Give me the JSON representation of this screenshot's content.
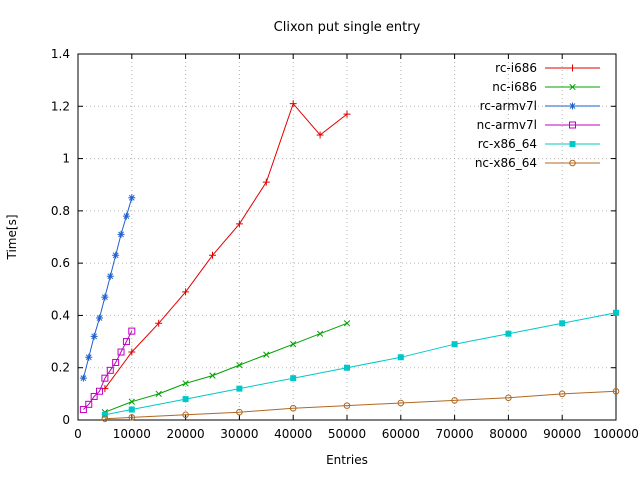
{
  "chart_data": {
    "type": "line",
    "title": "Clixon put single entry",
    "xlabel": "Entries",
    "ylabel": "Time[s]",
    "xlim": [
      0,
      100000
    ],
    "ylim": [
      0,
      1.4
    ],
    "xticks": [
      0,
      10000,
      20000,
      30000,
      40000,
      50000,
      60000,
      70000,
      80000,
      90000,
      100000
    ],
    "yticks": [
      0,
      0.2,
      0.4,
      0.6,
      0.8,
      1,
      1.2,
      1.4
    ],
    "grid": true,
    "legend_position": "top-right-inside",
    "grid_color": "#b8b8b8",
    "axis_color": "#000000",
    "series": [
      {
        "name": "rc-i686",
        "color": "#e00000",
        "marker": "plus",
        "x": [
          5000,
          10000,
          15000,
          20000,
          25000,
          30000,
          35000,
          40000,
          45000,
          50000
        ],
        "y": [
          0.12,
          0.26,
          0.37,
          0.49,
          0.63,
          0.75,
          0.91,
          1.21,
          1.09,
          1.17
        ]
      },
      {
        "name": "nc-i686",
        "color": "#00a000",
        "marker": "x",
        "x": [
          5000,
          10000,
          15000,
          20000,
          25000,
          30000,
          35000,
          40000,
          45000,
          50000
        ],
        "y": [
          0.03,
          0.07,
          0.1,
          0.14,
          0.17,
          0.21,
          0.25,
          0.29,
          0.33,
          0.37
        ]
      },
      {
        "name": "rc-armv7l",
        "color": "#2060d0",
        "marker": "asterisk",
        "x": [
          1000,
          2000,
          3000,
          4000,
          5000,
          6000,
          7000,
          8000,
          9000,
          10000
        ],
        "y": [
          0.16,
          0.24,
          0.32,
          0.39,
          0.47,
          0.55,
          0.63,
          0.71,
          0.78,
          0.85
        ]
      },
      {
        "name": "nc-armv7l",
        "color": "#c000c0",
        "marker": "square-open",
        "x": [
          1000,
          2000,
          3000,
          4000,
          5000,
          6000,
          7000,
          8000,
          9000,
          10000
        ],
        "y": [
          0.04,
          0.06,
          0.09,
          0.11,
          0.16,
          0.19,
          0.22,
          0.26,
          0.3,
          0.34
        ]
      },
      {
        "name": "rc-x86_64",
        "color": "#00c8c8",
        "marker": "square-filled",
        "x": [
          5000,
          10000,
          20000,
          30000,
          40000,
          50000,
          60000,
          70000,
          80000,
          90000,
          100000
        ],
        "y": [
          0.02,
          0.04,
          0.08,
          0.12,
          0.16,
          0.2,
          0.24,
          0.29,
          0.33,
          0.37,
          0.41
        ]
      },
      {
        "name": "nc-x86_64",
        "color": "#b06820",
        "marker": "circle-open",
        "x": [
          5000,
          10000,
          20000,
          30000,
          40000,
          50000,
          60000,
          70000,
          80000,
          90000,
          100000
        ],
        "y": [
          0.005,
          0.01,
          0.02,
          0.03,
          0.045,
          0.055,
          0.065,
          0.075,
          0.085,
          0.1,
          0.11
        ]
      }
    ]
  }
}
